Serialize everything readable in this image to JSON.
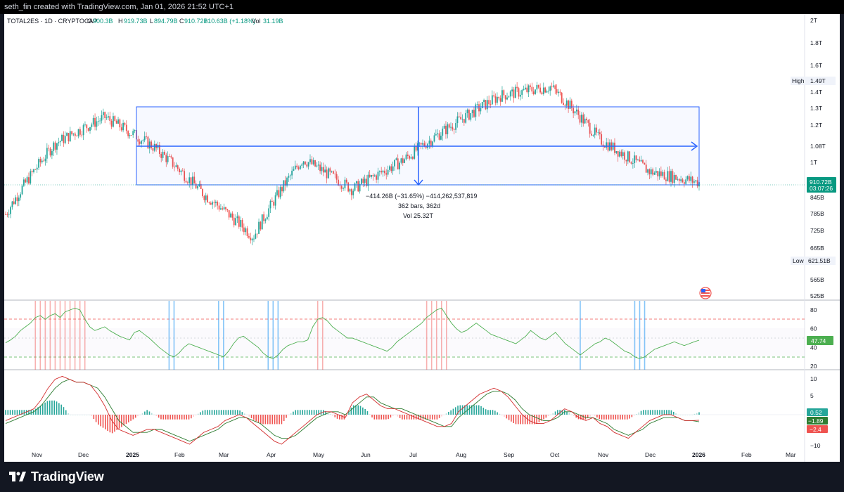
{
  "header": {
    "credit": "seth_fin created with TradingView.com, Jan 01, 2026 21:52 UTC+1"
  },
  "legend": {
    "symbol": "TOTAL2ES · 1D · CRYPTOCAP",
    "o_label": "O",
    "o_value": "900.3B",
    "h_label": "H",
    "h_value": "919.73B",
    "l_label": "L",
    "l_value": "894.79B",
    "c_label": "C",
    "c_value": "910.72B",
    "change": "+10.63B (+1.18%)",
    "vol_label": "Vol",
    "vol_value": "31.19B"
  },
  "price_axis": {
    "ticks": [
      "2T",
      "1.8T",
      "1.6T",
      "1.4T",
      "1.3T",
      "1.2T",
      "1.08T",
      "1T",
      "845B",
      "785B",
      "725B",
      "665B",
      "565B",
      "525B"
    ],
    "high_label": "High",
    "high_value": "1.49T",
    "low_label": "Low",
    "low_value": "621.51B",
    "current_price": "910.72B",
    "countdown": "03:07:26"
  },
  "measure": {
    "line1": "−414.26B (−31.65%) −414,262,537,819",
    "line2": "362 bars, 362d",
    "line3": "Vol 25.32T"
  },
  "rsi": {
    "ticks": [
      "80",
      "60",
      "40",
      "20"
    ],
    "value": "47.74",
    "series": [
      45,
      48,
      52,
      58,
      62,
      66,
      72,
      74,
      70,
      74,
      76,
      72,
      78,
      80,
      82,
      80,
      70,
      62,
      58,
      60,
      62,
      58,
      55,
      52,
      50,
      48,
      56,
      58,
      54,
      50,
      45,
      40,
      36,
      32,
      30,
      34,
      40,
      44,
      42,
      40,
      38,
      36,
      34,
      32,
      30,
      36,
      44,
      50,
      52,
      48,
      44,
      40,
      34,
      30,
      28,
      32,
      38,
      42,
      44,
      46,
      46,
      48,
      62,
      70,
      72,
      68,
      62,
      58,
      54,
      50,
      50,
      48,
      46,
      44,
      42,
      40,
      38,
      36,
      40,
      46,
      50,
      54,
      58,
      62,
      66,
      72,
      76,
      80,
      82,
      74,
      66,
      60,
      56,
      58,
      62,
      66,
      62,
      58,
      54,
      52,
      50,
      48,
      46,
      44,
      48,
      52,
      58,
      54,
      50,
      48,
      52,
      56,
      50,
      44,
      40,
      36,
      32,
      36,
      40,
      44,
      46,
      50,
      48,
      44,
      40,
      36,
      34,
      30,
      28,
      30,
      34,
      38,
      40,
      42,
      44,
      46,
      44,
      42,
      44,
      46,
      47.74
    ]
  },
  "macd": {
    "ticks": [
      "10",
      "5",
      "−10"
    ],
    "hist_value": "0.52",
    "macd_value": "−1.89",
    "signal_value": "−2.4",
    "macd_series": [
      -2,
      -1,
      0,
      1,
      2,
      5,
      9,
      12,
      13,
      12,
      11,
      11,
      10,
      7,
      3,
      -2,
      -5,
      -6,
      -7,
      -6,
      -5,
      -5,
      -6,
      -7,
      -8,
      -9,
      -10,
      -8,
      -6,
      -5,
      -4,
      -2,
      -1,
      0,
      -1,
      -3,
      -5,
      -7,
      -9,
      -10,
      -8,
      -6,
      -4,
      -2,
      0,
      1,
      1,
      0,
      -1,
      4,
      6,
      7,
      5,
      3,
      2,
      2,
      1,
      0,
      -1,
      -2,
      -3,
      -4,
      -4,
      -3,
      1,
      3,
      5,
      7,
      8,
      9,
      8,
      6,
      3,
      0,
      -2,
      -3,
      -3,
      -2,
      0,
      2,
      1,
      -1,
      -2,
      -1,
      -3,
      -4,
      -6,
      -7,
      -8,
      -6,
      -4,
      -2,
      -1,
      0,
      0,
      -1,
      -2,
      -2,
      -1.89
    ],
    "signal_series": [
      -3,
      -2,
      -1,
      0,
      1,
      3,
      6,
      9,
      11,
      12,
      11,
      11,
      10,
      9,
      6,
      2,
      -2,
      -4,
      -6,
      -6,
      -6,
      -5,
      -5,
      -6,
      -7,
      -8,
      -9,
      -8,
      -7,
      -6,
      -5,
      -3,
      -2,
      -1,
      -1,
      -2,
      -3,
      -5,
      -7,
      -8,
      -8,
      -7,
      -5,
      -3,
      -1,
      0,
      1,
      1,
      0,
      2,
      4,
      6,
      6,
      4,
      3,
      2,
      2,
      1,
      0,
      -1,
      -2,
      -3,
      -4,
      -4,
      -1,
      1,
      3,
      5,
      7,
      8,
      8,
      7,
      5,
      2,
      0,
      -1,
      -2,
      -2,
      -1,
      1,
      1,
      0,
      -1,
      -1,
      -2,
      -3,
      -5,
      -6,
      -7,
      -6,
      -5,
      -3,
      -2,
      -1,
      -1,
      -1,
      -2,
      -2,
      -2.4
    ]
  },
  "time_axis": {
    "labels": [
      "Nov",
      "Dec",
      "2025",
      "Feb",
      "Mar",
      "Apr",
      "May",
      "Jun",
      "Jul",
      "Aug",
      "Sep",
      "Oct",
      "Nov",
      "Dec",
      "2026",
      "Feb",
      "Mar"
    ],
    "bold": [
      "2025",
      "2026"
    ]
  },
  "chart_data": {
    "type": "line",
    "title": "",
    "x": [
      "Nov",
      "Dec",
      "2025",
      "Feb",
      "Mar",
      "Apr",
      "May",
      "Jun",
      "Jul",
      "Aug",
      "Sep",
      "Oct",
      "Nov",
      "Dec",
      "2026"
    ],
    "series": [
      {
        "values": [
          780,
          1100,
          1250,
          1080,
          860,
          700,
          1020,
          880,
          1010,
          1200,
          1390,
          1450,
          1120,
          960,
          910.72
        ]
      }
    ],
    "ylim": [
      500,
      2000
    ],
    "ylabel": "",
    "xlabel": ""
  },
  "brand": {
    "name": "TradingView"
  },
  "colors": {
    "up": "#26a69a",
    "down": "#ef5350",
    "box": "#2962ff",
    "rsi_line": "#4caf50",
    "macd_line": "#d32f2f",
    "signal_line": "#2e7d32"
  }
}
